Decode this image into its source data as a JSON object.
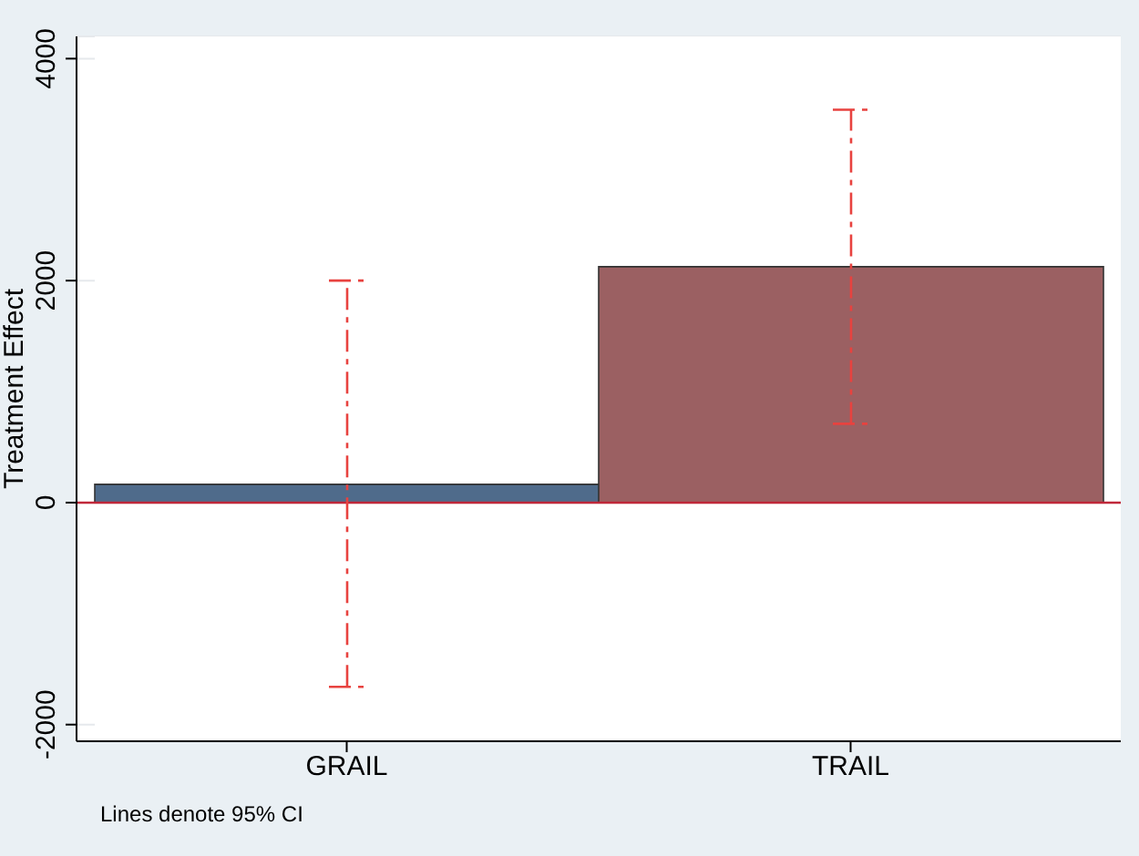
{
  "chart_data": {
    "type": "bar",
    "ylabel": "Treatment Effect",
    "categories": [
      "GRAIL",
      "TRAIL"
    ],
    "values": [
      165,
      2125
    ],
    "colors": [
      "#4f6b8b",
      "#9b6062"
    ],
    "errors": [
      [
        -1660,
        2000
      ],
      [
        710,
        3540
      ]
    ],
    "ylim": [
      -2150,
      4200
    ],
    "yticks": [
      -2000,
      0,
      2000,
      4000
    ],
    "grid": "y",
    "ref_lines": [
      {
        "axis": "y",
        "value": 0,
        "color": "#c0283a"
      }
    ],
    "annotations": [
      "Lines denote 95% CI"
    ]
  }
}
